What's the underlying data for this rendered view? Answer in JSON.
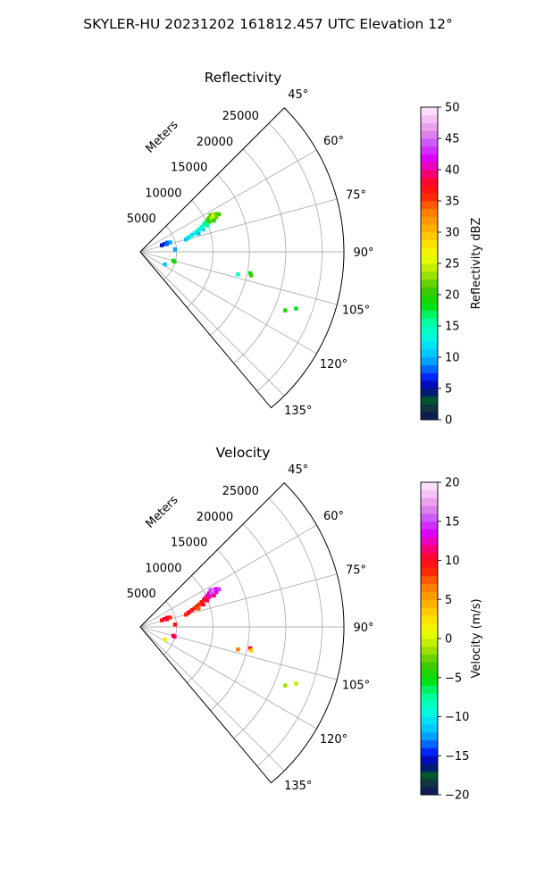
{
  "figure": {
    "suptitle": "SKYLER-HU  20231202  161812.457 UTC Elevation 12°"
  },
  "chart_data": [
    {
      "type": "polar-sector-scatter",
      "title": "Reflectivity",
      "radial_axis_label": "Meters",
      "radial_ticks": [
        5000,
        10000,
        15000,
        20000,
        25000
      ],
      "radial_max": 28000,
      "theta_ticks": [
        "45°",
        "60°",
        "75°",
        "90°",
        "105°",
        "120°",
        "135°"
      ],
      "theta_range_deg": [
        45,
        140
      ],
      "grid": true,
      "colorbar": {
        "label": "Reflectivity dBZ",
        "min": 0,
        "max": 50,
        "ticks": [
          "0",
          "5",
          "10",
          "15",
          "20",
          "25",
          "30",
          "35",
          "40",
          "45",
          "50"
        ]
      },
      "points": [
        {
          "az": 62.5,
          "r": 10900,
          "v": 21
        },
        {
          "az": 63,
          "r": 11300,
          "v": 23
        },
        {
          "az": 63.5,
          "r": 11700,
          "v": 22
        },
        {
          "az": 64,
          "r": 10500,
          "v": 20
        },
        {
          "az": 64,
          "r": 11100,
          "v": 25
        },
        {
          "az": 64.5,
          "r": 12000,
          "v": 21
        },
        {
          "az": 65,
          "r": 10200,
          "v": 18
        },
        {
          "az": 65,
          "r": 10800,
          "v": 24
        },
        {
          "az": 65.5,
          "r": 11500,
          "v": 22
        },
        {
          "az": 66,
          "r": 9800,
          "v": 17
        },
        {
          "az": 66.5,
          "r": 10400,
          "v": 21
        },
        {
          "az": 67,
          "r": 9500,
          "v": 15
        },
        {
          "az": 67,
          "r": 11000,
          "v": 19
        },
        {
          "az": 68,
          "r": 9100,
          "v": 14
        },
        {
          "az": 68.5,
          "r": 9900,
          "v": 16
        },
        {
          "az": 69,
          "r": 8700,
          "v": 13
        },
        {
          "az": 70,
          "r": 8300,
          "v": 14
        },
        {
          "az": 70.5,
          "r": 9200,
          "v": 12
        },
        {
          "az": 71,
          "r": 7900,
          "v": 13
        },
        {
          "az": 72,
          "r": 7500,
          "v": 12
        },
        {
          "az": 72.5,
          "r": 8400,
          "v": 11
        },
        {
          "az": 73,
          "r": 7100,
          "v": 13
        },
        {
          "az": 74,
          "r": 6800,
          "v": 12
        },
        {
          "az": 75,
          "r": 6500,
          "v": 11
        },
        {
          "az": 71,
          "r": 3900,
          "v": 8
        },
        {
          "az": 72,
          "r": 3500,
          "v": 7
        },
        {
          "az": 72.5,
          "r": 4300,
          "v": 9
        },
        {
          "az": 73,
          "r": 3100,
          "v": 6
        },
        {
          "az": 74,
          "r": 3800,
          "v": 8
        },
        {
          "az": 86,
          "r": 4800,
          "v": 9
        },
        {
          "az": 105,
          "r": 4700,
          "v": 18
        },
        {
          "az": 106,
          "r": 4900,
          "v": 19
        },
        {
          "az": 117,
          "r": 3800,
          "v": 11
        },
        {
          "az": 103,
          "r": 13800,
          "v": 14
        },
        {
          "az": 101,
          "r": 15400,
          "v": 18
        },
        {
          "az": 102,
          "r": 15600,
          "v": 20
        },
        {
          "az": 112,
          "r": 21500,
          "v": 19
        },
        {
          "az": 110,
          "r": 22800,
          "v": 18
        }
      ]
    },
    {
      "type": "polar-sector-scatter",
      "title": "Velocity",
      "radial_axis_label": "Meters",
      "radial_ticks": [
        5000,
        10000,
        15000,
        20000,
        25000
      ],
      "radial_max": 28000,
      "theta_ticks": [
        "45°",
        "60°",
        "75°",
        "90°",
        "105°",
        "120°",
        "135°"
      ],
      "theta_range_deg": [
        45,
        140
      ],
      "grid": true,
      "colorbar": {
        "label": "Velocity (m/s)",
        "min": -20,
        "max": 20,
        "ticks": [
          "−20",
          "−15",
          "−10",
          "−5",
          "0",
          "5",
          "10",
          "15",
          "20"
        ]
      },
      "points": [
        {
          "az": 62.5,
          "r": 10900,
          "v": 14
        },
        {
          "az": 63,
          "r": 11300,
          "v": 15
        },
        {
          "az": 63.5,
          "r": 11700,
          "v": 13
        },
        {
          "az": 64,
          "r": 10500,
          "v": 12
        },
        {
          "az": 64,
          "r": 11100,
          "v": 16
        },
        {
          "az": 64.5,
          "r": 12000,
          "v": 14
        },
        {
          "az": 65,
          "r": 10200,
          "v": 12
        },
        {
          "az": 65,
          "r": 10800,
          "v": 15
        },
        {
          "az": 65.5,
          "r": 11500,
          "v": 13
        },
        {
          "az": 66,
          "r": 9800,
          "v": 11
        },
        {
          "az": 66.5,
          "r": 10400,
          "v": 12
        },
        {
          "az": 67,
          "r": 9500,
          "v": 10
        },
        {
          "az": 67,
          "r": 11000,
          "v": 11
        },
        {
          "az": 68,
          "r": 9100,
          "v": 9
        },
        {
          "az": 68.5,
          "r": 9900,
          "v": 10
        },
        {
          "az": 69,
          "r": 8700,
          "v": 8
        },
        {
          "az": 70,
          "r": 8300,
          "v": 9
        },
        {
          "az": 70.5,
          "r": 9200,
          "v": 10
        },
        {
          "az": 71,
          "r": 7900,
          "v": 8
        },
        {
          "az": 72,
          "r": 7500,
          "v": 9
        },
        {
          "az": 72.5,
          "r": 8400,
          "v": 7
        },
        {
          "az": 73,
          "r": 7100,
          "v": 9
        },
        {
          "az": 74,
          "r": 6800,
          "v": 10
        },
        {
          "az": 75,
          "r": 6500,
          "v": 8
        },
        {
          "az": 71,
          "r": 3900,
          "v": 9
        },
        {
          "az": 72,
          "r": 3500,
          "v": 10
        },
        {
          "az": 72.5,
          "r": 4300,
          "v": 8
        },
        {
          "az": 73,
          "r": 3100,
          "v": 9
        },
        {
          "az": 74,
          "r": 3800,
          "v": 10
        },
        {
          "az": 86,
          "r": 4800,
          "v": 9
        },
        {
          "az": 105,
          "r": 4700,
          "v": 10
        },
        {
          "az": 106,
          "r": 4900,
          "v": 11
        },
        {
          "az": 117,
          "r": 3800,
          "v": 1
        },
        {
          "az": 103,
          "r": 13800,
          "v": 6
        },
        {
          "az": 101,
          "r": 15400,
          "v": 9
        },
        {
          "az": 102,
          "r": 15600,
          "v": 3
        },
        {
          "az": 112,
          "r": 21500,
          "v": -2
        },
        {
          "az": 110,
          "r": 22800,
          "v": -1
        }
      ]
    }
  ]
}
